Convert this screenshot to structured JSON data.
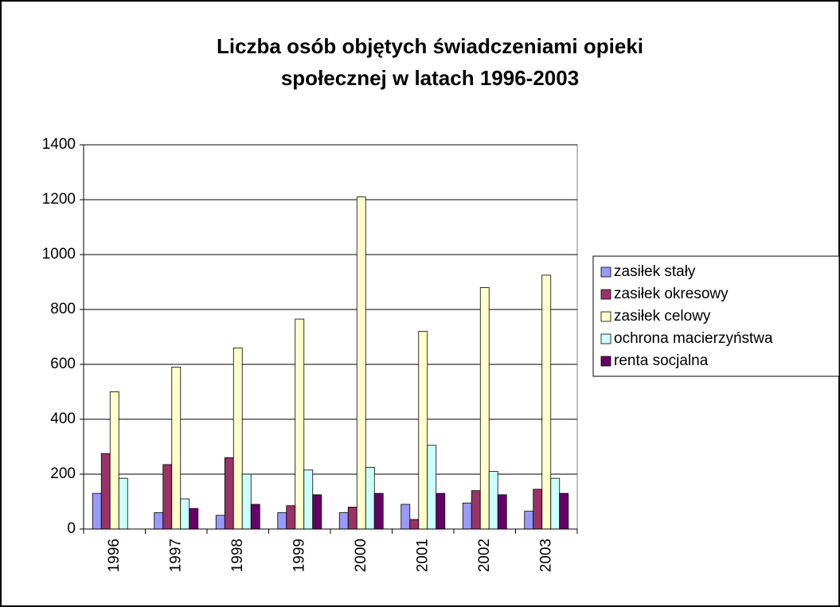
{
  "chart_data": {
    "type": "bar",
    "title": [
      "Liczba osób objętych świadczeniami opieki",
      "społecznej w latach 1996-2003"
    ],
    "categories": [
      "1996",
      "1997",
      "1998",
      "1999",
      "2000",
      "2001",
      "2002",
      "2003"
    ],
    "series": [
      {
        "name": "zasiłek stały",
        "color": "#9999ff",
        "values": [
          130,
          60,
          50,
          60,
          60,
          90,
          95,
          65
        ]
      },
      {
        "name": "zasiłek okresowy",
        "color": "#993366",
        "values": [
          275,
          235,
          260,
          85,
          80,
          35,
          140,
          145
        ]
      },
      {
        "name": "zasiłek celowy",
        "color": "#ffffcc",
        "values": [
          500,
          590,
          660,
          765,
          1210,
          720,
          880,
          925
        ]
      },
      {
        "name": "ochrona macierzyństwa",
        "color": "#ccffff",
        "values": [
          185,
          110,
          200,
          215,
          225,
          305,
          210,
          185
        ]
      },
      {
        "name": "renta socjalna",
        "color": "#660066",
        "values": [
          0,
          75,
          90,
          125,
          130,
          130,
          125,
          130
        ]
      }
    ],
    "ylim": [
      0,
      1400
    ],
    "yticks": [
      0,
      200,
      400,
      600,
      800,
      1000,
      1200,
      1400
    ],
    "grid": true,
    "legend": "right"
  }
}
